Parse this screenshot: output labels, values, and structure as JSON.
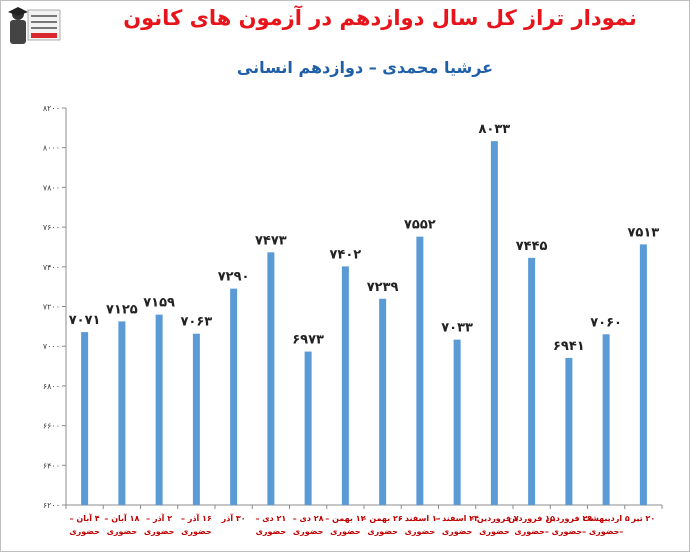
{
  "header": {
    "title": "نمودار تراز کل سال دوازدهم در آزمون های کانون",
    "subtitle": "عرشیا محمدی – دوازدهم انسانی"
  },
  "colors": {
    "bar": "#5b9bd5",
    "title": "#e8141b",
    "subtitle": "#1f5fa8",
    "axis_label": "#c00000"
  },
  "chart_data": {
    "type": "bar",
    "title": "نمودار تراز کل سال دوازدهم در آزمون های کانون",
    "subtitle": "عرشیا محمدی – دوازدهم انسانی",
    "xlabel": "",
    "ylabel": "",
    "ylim": [
      6200,
      8200
    ],
    "yticks": [
      6200,
      6400,
      6600,
      6800,
      7000,
      7200,
      7400,
      7600,
      7800,
      8000,
      8200
    ],
    "ytick_labels": [
      "۶۲۰۰",
      "۶۴۰۰",
      "۶۶۰۰",
      "۶۸۰۰",
      "۷۰۰۰",
      "۷۲۰۰",
      "۷۴۰۰",
      "۷۶۰۰",
      "۷۸۰۰",
      "۸۰۰۰",
      "۸۲۰۰"
    ],
    "grid": false,
    "legend": "none",
    "categories": [
      [
        "۴ آبان –",
        "حضوری"
      ],
      [
        "۱۸ آبان –",
        "حضوری"
      ],
      [
        "۲ آذر –",
        "حضوری"
      ],
      [
        "۱۶ آذر –",
        "حضوری"
      ],
      [
        "۳۰ آذر"
      ],
      [
        "۲۱ دی –",
        "حضوری"
      ],
      [
        "۲۸ دی –",
        "حضوری"
      ],
      [
        "۱۲ بهمن –",
        "حضوری"
      ],
      [
        "۲۶ بهمن –",
        "حضوری"
      ],
      [
        "۱۰ اسفند –",
        "حضوری"
      ],
      [
        "۲۴ اسفند –",
        "حضوری"
      ],
      [
        "۷ فروردین –",
        "حضوری"
      ],
      [
        "۱۵ فروردین",
        "–حضوری"
      ],
      [
        "۲۹ فروردین",
        "–حضوری"
      ],
      [
        "۵ اردیبهشت",
        "–حضوری"
      ],
      [
        "۲۰ تیر"
      ]
    ],
    "values": [
      7071,
      7125,
      7159,
      7063,
      7290,
      7473,
      6973,
      7402,
      7239,
      7552,
      7033,
      8033,
      7445,
      6941,
      7060,
      7513
    ],
    "value_labels": [
      "۷۰۷۱",
      "۷۱۲۵",
      "۷۱۵۹",
      "۷۰۶۳",
      "۷۲۹۰",
      "۷۴۷۳",
      "۶۹۷۳",
      "۷۴۰۲",
      "۷۲۳۹",
      "۷۵۵۲",
      "۷۰۳۳",
      "۸۰۳۳",
      "۷۴۴۵",
      "۶۹۴۱",
      "۷۰۶۰",
      "۷۵۱۳"
    ]
  }
}
